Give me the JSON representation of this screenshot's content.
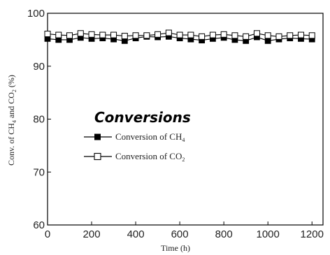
{
  "chart_data": {
    "type": "line",
    "title": "",
    "xlabel": "Time (h)",
    "ylabel": "Conv. of CH4 and CO2 (%)",
    "ylabel_parts": [
      "Conv. of CH",
      "4",
      " and CO",
      "2",
      " (%)"
    ],
    "xlim": [
      0,
      1250
    ],
    "ylim": [
      60,
      100
    ],
    "x_ticks": [
      0,
      200,
      400,
      600,
      800,
      1000,
      1200
    ],
    "x_tick_labels": [
      "0",
      "200",
      "400",
      "600",
      "800",
      "1000",
      "1200"
    ],
    "y_ticks": [
      60,
      70,
      80,
      90,
      100
    ],
    "y_tick_labels": [
      "60",
      "70",
      "80",
      "90",
      "100"
    ],
    "grid": false,
    "legend_position": "center-left",
    "annotation": "Conversions",
    "x": [
      0,
      50,
      100,
      150,
      200,
      250,
      300,
      350,
      400,
      450,
      500,
      550,
      600,
      650,
      700,
      750,
      800,
      850,
      900,
      950,
      1000,
      1050,
      1100,
      1150,
      1200
    ],
    "series": [
      {
        "name": "Conversion of CH4",
        "name_parts": [
          "Conversion of CH",
          "4"
        ],
        "marker": "filled-square",
        "color": "#000000",
        "values": [
          95.2,
          95.0,
          95.0,
          95.4,
          95.2,
          95.3,
          95.1,
          94.8,
          95.3,
          95.6,
          95.5,
          95.6,
          95.3,
          95.1,
          94.9,
          95.2,
          95.4,
          95.0,
          94.8,
          95.5,
          94.8,
          95.1,
          95.3,
          95.2,
          95.1
        ]
      },
      {
        "name": "Conversion of CO2",
        "name_parts": [
          "Conversion of CO",
          "2"
        ],
        "marker": "open-square",
        "color": "#000000",
        "values": [
          96.1,
          95.9,
          95.8,
          96.2,
          96.0,
          95.9,
          95.9,
          95.7,
          95.8,
          95.8,
          96.0,
          96.3,
          95.9,
          95.9,
          95.6,
          95.9,
          96.0,
          95.8,
          95.6,
          96.2,
          95.8,
          95.6,
          95.8,
          95.9,
          95.8
        ]
      }
    ]
  }
}
